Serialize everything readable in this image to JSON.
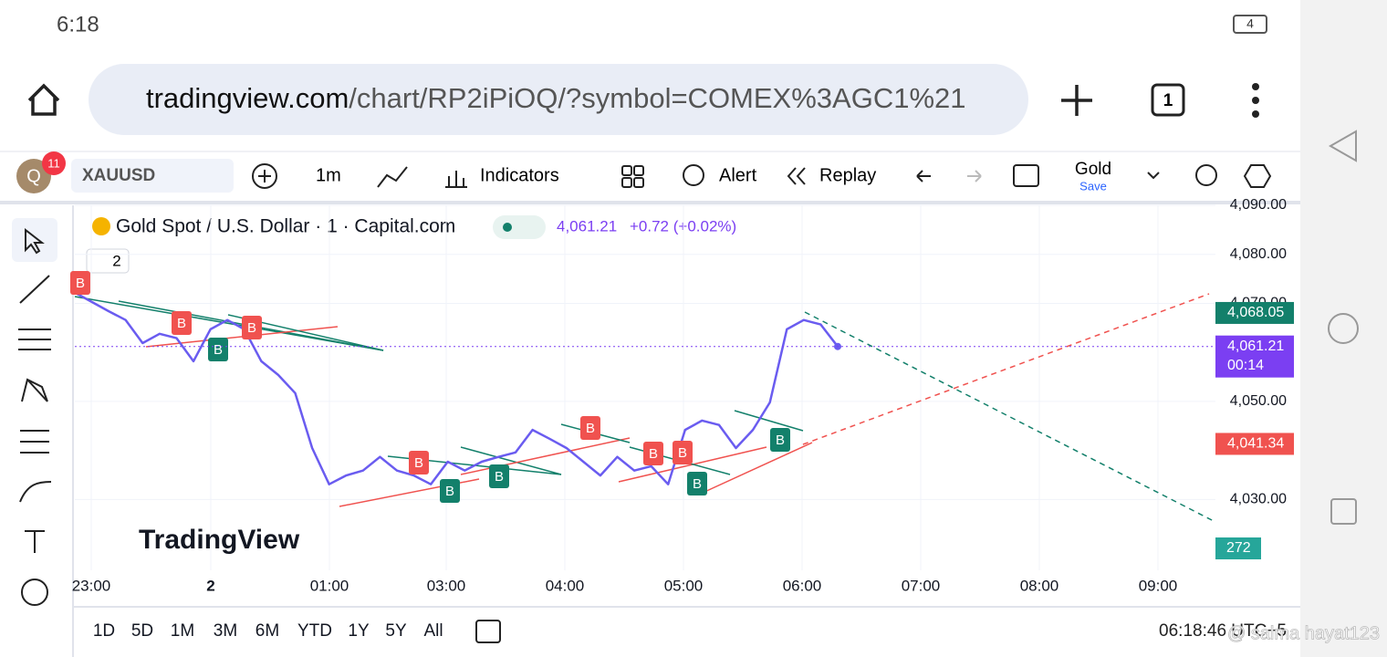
{
  "status_bar": {
    "time": "6:18",
    "battery": "4"
  },
  "browser": {
    "url_domain": "tradingview.com",
    "url_path": "/chart/RP2iPiOQ/?symbol=COMEX%3AGC1%21",
    "tab_count": "1"
  },
  "toolbar": {
    "avatar": "Q",
    "badge": "11",
    "symbol": "XAUUSD",
    "interval": "1m",
    "indicators": "Indicators",
    "alert": "Alert",
    "replay": "Replay",
    "layout_name": "Gold",
    "save": "Save"
  },
  "legend": {
    "title": "Gold Spot / U.S. Dollar · 1 · Capital.com",
    "price": "4,061.21",
    "change": "+0.72 (+0.02%)",
    "collapsed_count": "2"
  },
  "chart_data": {
    "type": "line",
    "color": "#6a5cf0",
    "values": [
      4072.2,
      4070.3,
      4068.4,
      4066.6,
      4061.9,
      4063.8,
      4062.9,
      4058.2,
      4064.7,
      4066.6,
      4064.7,
      4058.2,
      4055.4,
      4051.7,
      4040.5,
      4033.1,
      4034.9,
      4035.9,
      4038.7,
      4035.9,
      4034.9,
      4033.1,
      4037.7,
      4035.9,
      4037.7,
      4038.7,
      4039.6,
      4044.2,
      4042.4,
      4040.5,
      4037.7,
      4034.9,
      4038.7,
      4035.9,
      4036.8,
      4033.1,
      4044.2,
      4046.1,
      4045.2,
      4040.5,
      4044.2,
      4049.8,
      4064.7,
      4066.6,
      4065.7,
      4061.21
    ],
    "ylim": [
      4015,
      4090
    ],
    "yticks": [
      {
        "value": 4090,
        "label": "4,090.00"
      },
      {
        "value": 4080,
        "label": "4,080.00"
      },
      {
        "value": 4070,
        "label": "4,070.00"
      },
      {
        "value": 4050,
        "label": "4,050.00"
      },
      {
        "value": 4030,
        "label": "4,030.00"
      }
    ],
    "time_labels": [
      "23:00",
      "2",
      "01:00",
      "03:00",
      "04:00",
      "05:00",
      "06:00",
      "07:00",
      "08:00",
      "09:00"
    ],
    "price_tags": [
      {
        "value": 4068.05,
        "label": "4,068.05",
        "color": "#13806b"
      },
      {
        "value": 4061.21,
        "label": "4,061.21",
        "color": "#7b3ff2"
      },
      {
        "value": 4041.34,
        "label": "4,041.34",
        "color": "#f0524f"
      }
    ],
    "countdown": "00:14",
    "volume_label": "272",
    "markers": [
      {
        "text": "B",
        "kind": "sell"
      },
      {
        "text": "B",
        "kind": "sell"
      },
      {
        "text": "B",
        "kind": "buy"
      },
      {
        "text": "B",
        "kind": "sell"
      },
      {
        "text": "B",
        "kind": "sell"
      },
      {
        "text": "B",
        "kind": "buy"
      },
      {
        "text": "B",
        "kind": "buy"
      },
      {
        "text": "B",
        "kind": "sell"
      },
      {
        "text": "B",
        "kind": "sell"
      },
      {
        "text": "B",
        "kind": "sell"
      },
      {
        "text": "B",
        "kind": "buy"
      },
      {
        "text": "B",
        "kind": "buy"
      }
    ],
    "watermark": "TradingView"
  },
  "bottom_bar": {
    "ranges": [
      "1D",
      "5D",
      "1M",
      "3M",
      "6M",
      "YTD",
      "1Y",
      "5Y",
      "All"
    ],
    "time_zone": "06:18:46 UTC+5",
    "overlay_text": "@ salma hayat123"
  }
}
